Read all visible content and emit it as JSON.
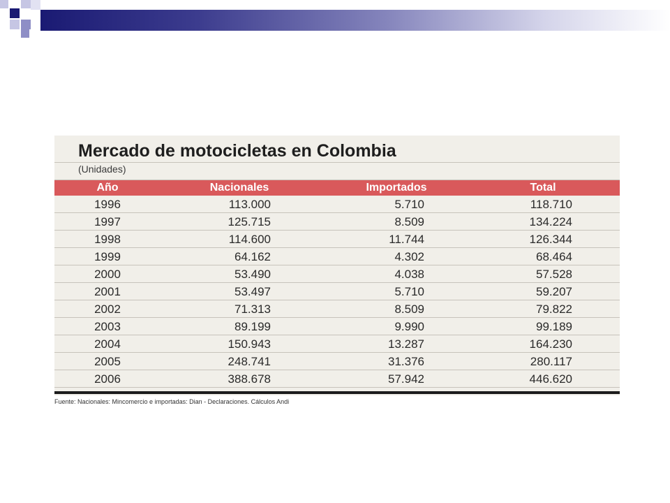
{
  "table": {
    "title": "Mercado de motocicletas en Colombia",
    "subtitle": "(Unidades)",
    "headers": {
      "year": "Año",
      "nacionales": "Nacionales",
      "importados": "Importados",
      "total": "Total"
    },
    "rows": [
      {
        "year": "1996",
        "nacionales": "113.000",
        "importados": "5.710",
        "total": "118.710"
      },
      {
        "year": "1997",
        "nacionales": "125.715",
        "importados": "8.509",
        "total": "134.224"
      },
      {
        "year": "1998",
        "nacionales": "114.600",
        "importados": "11.744",
        "total": "126.344"
      },
      {
        "year": "1999",
        "nacionales": "64.162",
        "importados": "4.302",
        "total": "68.464"
      },
      {
        "year": "2000",
        "nacionales": "53.490",
        "importados": "4.038",
        "total": "57.528"
      },
      {
        "year": "2001",
        "nacionales": "53.497",
        "importados": "5.710",
        "total": "59.207"
      },
      {
        "year": "2002",
        "nacionales": "71.313",
        "importados": "8.509",
        "total": "79.822"
      },
      {
        "year": "2003",
        "nacionales": "89.199",
        "importados": "9.990",
        "total": "99.189"
      },
      {
        "year": "2004",
        "nacionales": "150.943",
        "importados": "13.287",
        "total": "164.230"
      },
      {
        "year": "2005",
        "nacionales": "248.741",
        "importados": "31.376",
        "total": "280.117"
      },
      {
        "year": "2006",
        "nacionales": "388.678",
        "importados": "57.942",
        "total": "446.620"
      }
    ],
    "source": "Fuente: Nacionales: Mincomercio e importadas: Dian - Declaraciones. Cálculos Andi"
  },
  "colors": {
    "header_bg": "#d9595b",
    "panel_bg": "#f1efe9",
    "deco_dark": "#1a1a73"
  }
}
